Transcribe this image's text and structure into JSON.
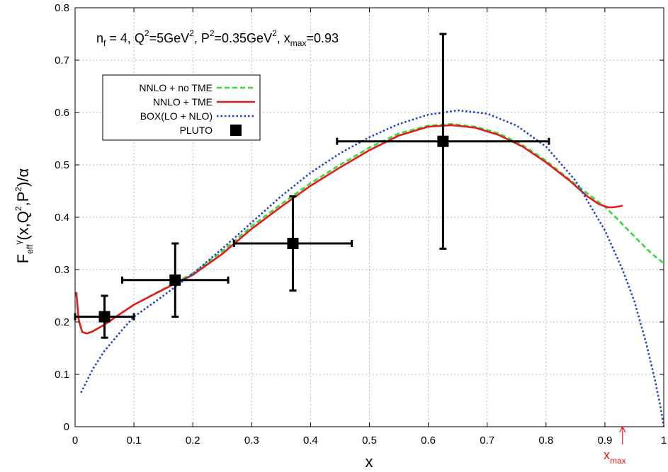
{
  "chart_data": {
    "type": "line",
    "xlabel": "x",
    "ylabel": {
      "base": "F",
      "sub": "eff",
      "sup": "γ",
      "rest1": "(x,Q",
      "rest1_sup": "2",
      "rest2": ",P",
      "rest2_sup": "2",
      "rest3": ")/α"
    },
    "xlim": [
      0,
      1
    ],
    "ylim": [
      0,
      0.8
    ],
    "x_ticks": [
      0,
      0.1,
      0.2,
      0.3,
      0.4,
      0.5,
      0.6,
      0.7,
      0.8,
      0.9,
      1
    ],
    "x_tick_labels": [
      "0",
      "0.1",
      "0.2",
      "0.3",
      "0.4",
      "0.5",
      "0.6",
      "0.7",
      "0.8",
      "0.9",
      "1"
    ],
    "y_ticks": [
      0,
      0.1,
      0.2,
      0.3,
      0.4,
      0.5,
      0.6,
      0.7,
      0.8
    ],
    "y_tick_labels": [
      "0",
      "0.1",
      "0.2",
      "0.3",
      "0.4",
      "0.5",
      "0.6",
      "0.7",
      "0.8"
    ],
    "grid": true,
    "legend_position": "top-left",
    "annotation": {
      "parts": [
        {
          "t": "n",
          "s": ""
        },
        {
          "t": "f",
          "s": "sub"
        },
        {
          "t": " = 4, Q",
          "s": ""
        },
        {
          "t": "2",
          "s": "sup"
        },
        {
          "t": "=5GeV",
          "s": ""
        },
        {
          "t": "2",
          "s": "sup"
        },
        {
          "t": ", P",
          "s": ""
        },
        {
          "t": "2",
          "s": "sup"
        },
        {
          "t": "=0.35GeV",
          "s": ""
        },
        {
          "t": "2",
          "s": "sup"
        },
        {
          "t": ", x",
          "s": ""
        },
        {
          "t": "max",
          "s": "sub"
        },
        {
          "t": "=0.93",
          "s": ""
        }
      ]
    },
    "xmax_marker": {
      "x": 0.93,
      "label": "x",
      "label_sub": "max",
      "color": "#e41a1c"
    },
    "series": [
      {
        "name": "NNLO + no TME",
        "color": "#33dd33",
        "style": "dashed",
        "x": [
          0.002,
          0.006,
          0.012,
          0.02,
          0.03,
          0.05,
          0.08,
          0.1,
          0.15,
          0.2,
          0.25,
          0.3,
          0.35,
          0.4,
          0.45,
          0.5,
          0.55,
          0.6,
          0.64,
          0.68,
          0.72,
          0.76,
          0.8,
          0.84,
          0.88,
          0.9,
          0.92,
          0.94,
          0.96,
          0.98,
          1.0
        ],
        "y": [
          0.257,
          0.205,
          0.181,
          0.178,
          0.182,
          0.195,
          0.218,
          0.233,
          0.263,
          0.293,
          0.335,
          0.383,
          0.425,
          0.465,
          0.5,
          0.533,
          0.56,
          0.575,
          0.578,
          0.573,
          0.56,
          0.538,
          0.508,
          0.472,
          0.437,
          0.42,
          0.398,
          0.375,
          0.352,
          0.33,
          0.312
        ]
      },
      {
        "name": "NNLO + TME",
        "color": "#e41a1c",
        "style": "solid",
        "x": [
          0.002,
          0.006,
          0.012,
          0.02,
          0.03,
          0.05,
          0.08,
          0.1,
          0.15,
          0.2,
          0.25,
          0.3,
          0.35,
          0.4,
          0.45,
          0.5,
          0.55,
          0.6,
          0.64,
          0.68,
          0.72,
          0.76,
          0.8,
          0.84,
          0.87,
          0.89,
          0.905,
          0.915,
          0.925,
          0.93
        ],
        "y": [
          0.257,
          0.205,
          0.181,
          0.178,
          0.182,
          0.195,
          0.218,
          0.233,
          0.262,
          0.29,
          0.33,
          0.378,
          0.42,
          0.46,
          0.495,
          0.528,
          0.556,
          0.573,
          0.576,
          0.571,
          0.557,
          0.535,
          0.505,
          0.47,
          0.44,
          0.425,
          0.419,
          0.419,
          0.421,
          0.422
        ]
      },
      {
        "name": "BOX(LO + NLO)",
        "color": "#1f3fd6",
        "style": "dotted",
        "x": [
          0.01,
          0.03,
          0.05,
          0.08,
          0.1,
          0.15,
          0.2,
          0.25,
          0.3,
          0.35,
          0.4,
          0.45,
          0.5,
          0.55,
          0.6,
          0.65,
          0.7,
          0.75,
          0.8,
          0.85,
          0.9,
          0.93,
          0.95,
          0.97,
          0.985,
          0.995,
          1.0
        ],
        "y": [
          0.065,
          0.11,
          0.145,
          0.185,
          0.21,
          0.25,
          0.292,
          0.34,
          0.39,
          0.44,
          0.485,
          0.522,
          0.553,
          0.578,
          0.596,
          0.604,
          0.598,
          0.575,
          0.535,
          0.47,
          0.375,
          0.3,
          0.24,
          0.16,
          0.09,
          0.035,
          0.0
        ]
      }
    ],
    "points": {
      "name": "PLUTO",
      "color": "#000000",
      "data": [
        {
          "x": 0.05,
          "y": 0.21,
          "xerr": [
            0.0,
            0.1
          ],
          "yerr": [
            0.17,
            0.25
          ]
        },
        {
          "x": 0.17,
          "y": 0.28,
          "xerr": [
            0.08,
            0.26
          ],
          "yerr": [
            0.21,
            0.35
          ]
        },
        {
          "x": 0.37,
          "y": 0.35,
          "xerr": [
            0.27,
            0.47
          ],
          "yerr": [
            0.26,
            0.44
          ]
        },
        {
          "x": 0.625,
          "y": 0.545,
          "xerr": [
            0.445,
            0.805
          ],
          "yerr": [
            0.34,
            0.75
          ]
        }
      ]
    }
  }
}
